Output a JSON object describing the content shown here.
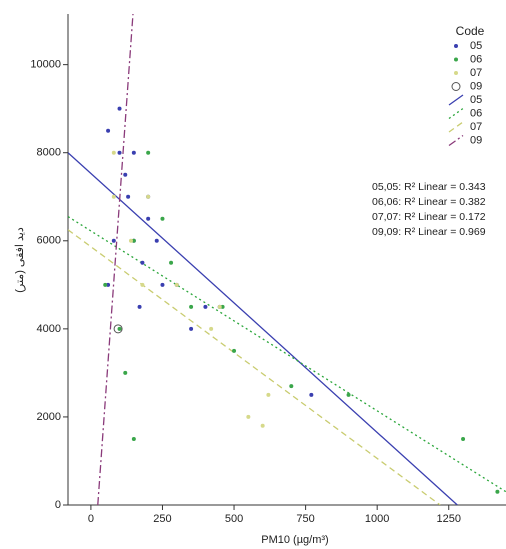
{
  "chart_data": {
    "type": "scatter",
    "x_label": "PM10 (µg/m³)",
    "y_label": "دید افقی (متر)",
    "xlim": [
      -80,
      1450
    ],
    "ylim": [
      0,
      11150
    ],
    "xticks": [
      0,
      250,
      500,
      750,
      1000,
      1250
    ],
    "yticks": [
      0,
      2000,
      4000,
      6000,
      8000,
      10000
    ],
    "grid": false,
    "legend_title": "Code",
    "series": [
      {
        "name": "05",
        "color": "#3a3fb0",
        "marker": "dot",
        "x": [
          100,
          150,
          130,
          200,
          80,
          150,
          250,
          300,
          400,
          450,
          60,
          180,
          350,
          200,
          120,
          770,
          230,
          100,
          60,
          170
        ],
        "values": [
          8000,
          8000,
          7000,
          7000,
          6000,
          6000,
          5000,
          5000,
          4500,
          4500,
          5000,
          5500,
          4000,
          6500,
          7500,
          2500,
          6000,
          9000,
          8500,
          4500
        ]
      },
      {
        "name": "06",
        "color": "#3aa64a",
        "marker": "dot",
        "x": [
          50,
          100,
          150,
          250,
          350,
          500,
          700,
          900,
          1300,
          1420,
          150,
          200,
          120,
          460,
          280
        ],
        "values": [
          5000,
          4000,
          6000,
          6500,
          4500,
          3500,
          2700,
          2500,
          1500,
          300,
          1500,
          8000,
          3000,
          4500,
          5500
        ]
      },
      {
        "name": "07",
        "color": "#d6d98a",
        "marker": "dot",
        "x": [
          80,
          140,
          180,
          300,
          450,
          550,
          600,
          420,
          80,
          200,
          620
        ],
        "values": [
          7000,
          6000,
          5000,
          5000,
          4500,
          2000,
          1800,
          4000,
          8000,
          7000,
          2500
        ]
      },
      {
        "name": "09",
        "color": "#555555",
        "marker": "circle",
        "x": [
          95
        ],
        "values": [
          4000
        ]
      }
    ],
    "fit_lines": [
      {
        "name": "05",
        "color": "#3a3fb0",
        "style": "solid",
        "x": [
          -80,
          1280
        ],
        "values": [
          8000,
          0
        ]
      },
      {
        "name": "06",
        "color": "#2aa63a",
        "style": "dotted",
        "x": [
          -80,
          1450
        ],
        "values": [
          6550,
          300
        ]
      },
      {
        "name": "07",
        "color": "#c9cc70",
        "style": "dashed",
        "x": [
          -80,
          1220
        ],
        "values": [
          6250,
          0
        ]
      },
      {
        "name": "09",
        "color": "#8a3a7a",
        "style": "dashdot",
        "x": [
          24,
          147
        ],
        "values": [
          0,
          11150
        ]
      }
    ],
    "annotations": [
      "05,05: R² Linear = 0.343",
      "06,06: R² Linear = 0.382",
      "07,07: R² Linear = 0.172",
      "09,09: R² Linear = 0.969"
    ]
  }
}
